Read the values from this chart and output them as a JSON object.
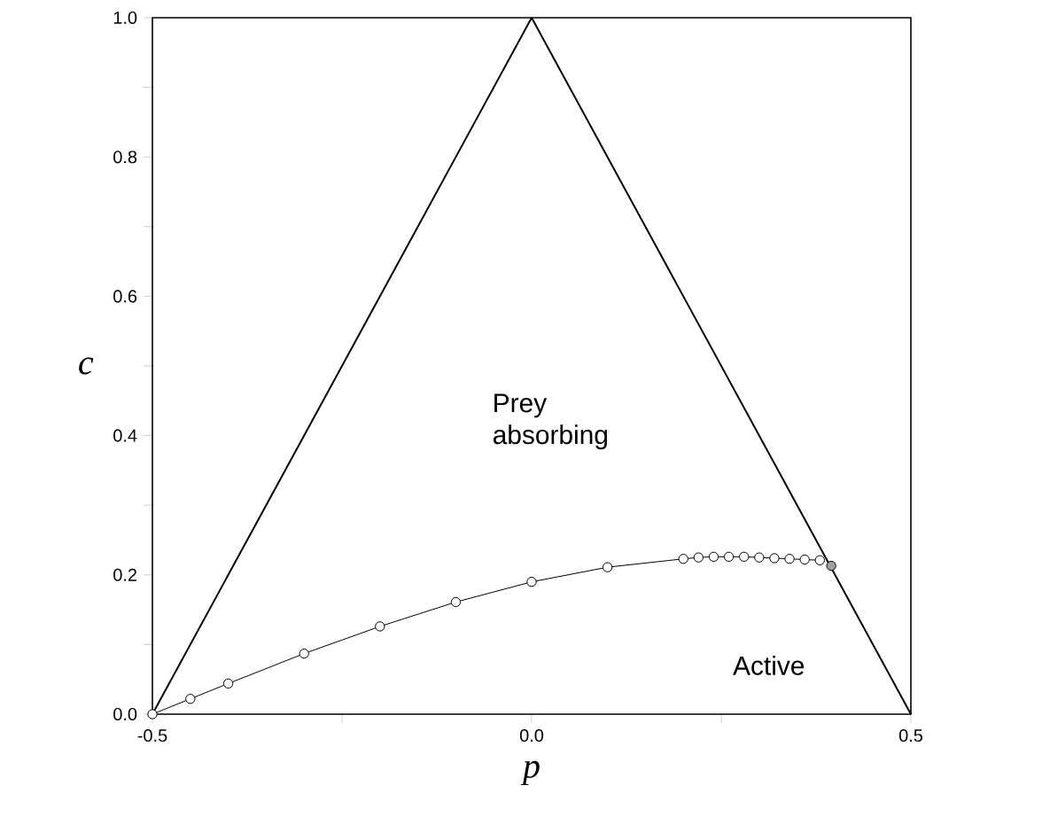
{
  "chart_data": {
    "type": "line",
    "xlabel": "p",
    "ylabel": "c",
    "xlim": [
      -0.5,
      0.5
    ],
    "ylim": [
      0,
      1.0
    ],
    "xticks": [
      {
        "value": -0.5,
        "label": "-0.5"
      },
      {
        "value": -0.25,
        "label": null
      },
      {
        "value": 0,
        "label": "0.0"
      },
      {
        "value": 0.25,
        "label": null
      },
      {
        "value": 0.5,
        "label": "0.5"
      }
    ],
    "yticks": [
      {
        "value": 0,
        "label": "0.0"
      },
      {
        "value": 0.1,
        "label": null
      },
      {
        "value": 0.2,
        "label": "0.2"
      },
      {
        "value": 0.3,
        "label": null
      },
      {
        "value": 0.4,
        "label": "0.4"
      },
      {
        "value": 0.5,
        "label": null
      },
      {
        "value": 0.6,
        "label": "0.6"
      },
      {
        "value": 0.7,
        "label": null
      },
      {
        "value": 0.8,
        "label": "0.8"
      },
      {
        "value": 0.9,
        "label": null
      },
      {
        "value": 1.0,
        "label": "1.0"
      }
    ],
    "series": [
      {
        "color": "#000000",
        "marker": "none",
        "x": [
          -0.5,
          0,
          0.5
        ],
        "values": [
          0,
          1.0,
          0
        ]
      },
      {
        "color": "#000000",
        "marker": "circle",
        "x": [
          -0.5,
          -0.45,
          -0.4,
          -0.3,
          -0.2,
          -0.1,
          0,
          0.1,
          0.2,
          0.22,
          0.24,
          0.26,
          0.28,
          0.3,
          0.32,
          0.34,
          0.36,
          0.38
        ],
        "values": [
          0,
          0.022,
          0.044,
          0.087,
          0.126,
          0.161,
          0.19,
          0.211,
          0.223,
          0.225,
          0.226,
          0.226,
          0.226,
          0.225,
          0.224,
          0.223,
          0.222,
          0.221
        ]
      },
      {
        "type": "scatter",
        "color": "#a0a0a0",
        "marker": "circle",
        "x": [
          0.395
        ],
        "values": [
          0.213
        ]
      }
    ],
    "annotations": [
      "Prey absorbing",
      "Active"
    ]
  }
}
